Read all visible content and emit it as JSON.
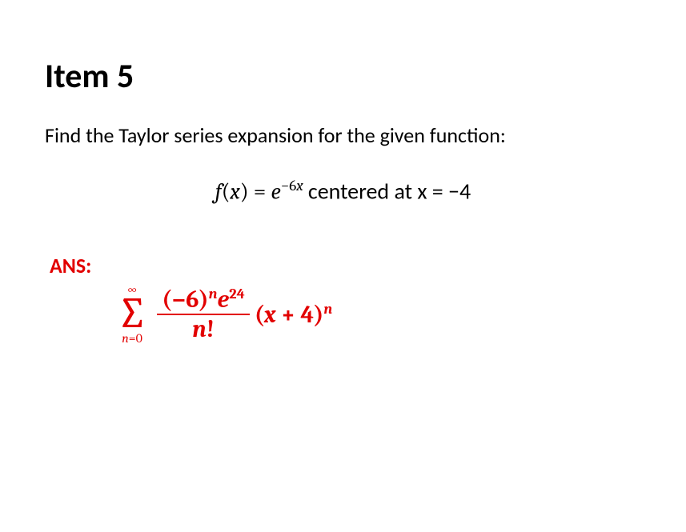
{
  "heading": "Item 5",
  "prompt": "Find the Taylor series expansion for the given function:",
  "equation": {
    "lhs_func": "f",
    "lhs_var": "x",
    "rhs_base": "e",
    "rhs_exp_coeff": "−6",
    "rhs_exp_var": "x",
    "centered_text": " centered at x = ",
    "center_value": "−4"
  },
  "answer": {
    "label": "ANS:",
    "sigma_upper": "∞",
    "sigma_lower_var": "n",
    "sigma_lower_eq": "=0",
    "num_base1_open": "(",
    "num_base1_val": "−6",
    "num_base1_close": ")",
    "num_base1_exp": "n",
    "num_base2": "e",
    "num_base2_exp": "24",
    "den_var": "n",
    "den_fact": "!",
    "tail_open": "(",
    "tail_var": "x",
    "tail_plus": " + 4",
    "tail_close": ")",
    "tail_exp": "n"
  },
  "colors": {
    "text": "#000000",
    "answer": "#e20000",
    "background": "#ffffff"
  },
  "fonts": {
    "body": "Calibri",
    "math": "Cambria Math",
    "heading_size_pt": 32,
    "prompt_size_pt": 20,
    "equation_size_pt": 21,
    "answer_size_pt": 22
  }
}
